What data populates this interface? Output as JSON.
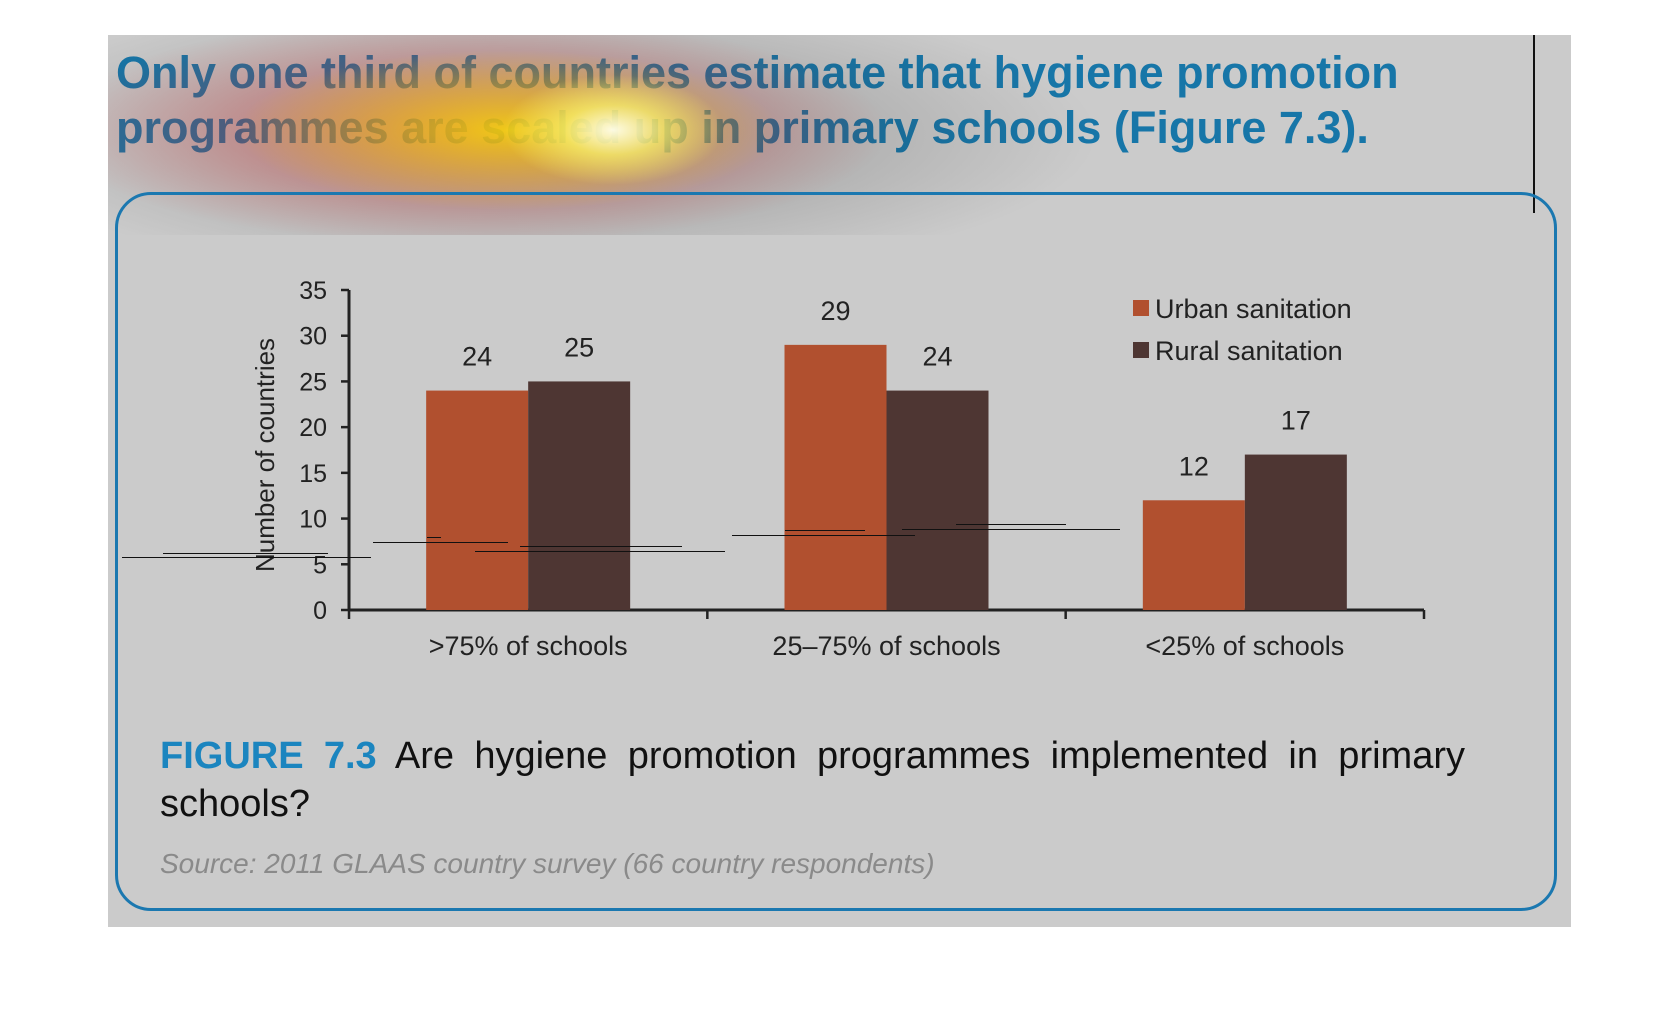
{
  "headline": "Only one third of countries estimate that hygiene promotion programmes are scaled up in primary schools (Figure 7.3).",
  "caption": {
    "label": "FIGURE 7.3",
    "text": "Are hygiene promotion programmes implemented in primary schools?"
  },
  "source": "Source: 2011 GLAAS country survey (66 country respondents)",
  "colors": {
    "urban": "#b1502f",
    "rural": "#4e3633",
    "accent_blue": "#1b85bf",
    "background": "#cbcbcb"
  },
  "chart_data": {
    "type": "bar",
    "categories": [
      ">75% of schools",
      "25–75% of schools",
      "<25% of schools"
    ],
    "series": [
      {
        "name": "Urban sanitation",
        "values": [
          24,
          29,
          12
        ],
        "color": "#b1502f"
      },
      {
        "name": "Rural sanitation",
        "values": [
          25,
          24,
          17
        ],
        "color": "#4e3633"
      }
    ],
    "ylabel": "Number of countries",
    "xlabel": "",
    "ylim": [
      0,
      35
    ],
    "yticks": [
      0,
      5,
      10,
      15,
      20,
      25,
      30,
      35
    ],
    "data_labels": true,
    "legend": "top-right",
    "grid": false
  }
}
